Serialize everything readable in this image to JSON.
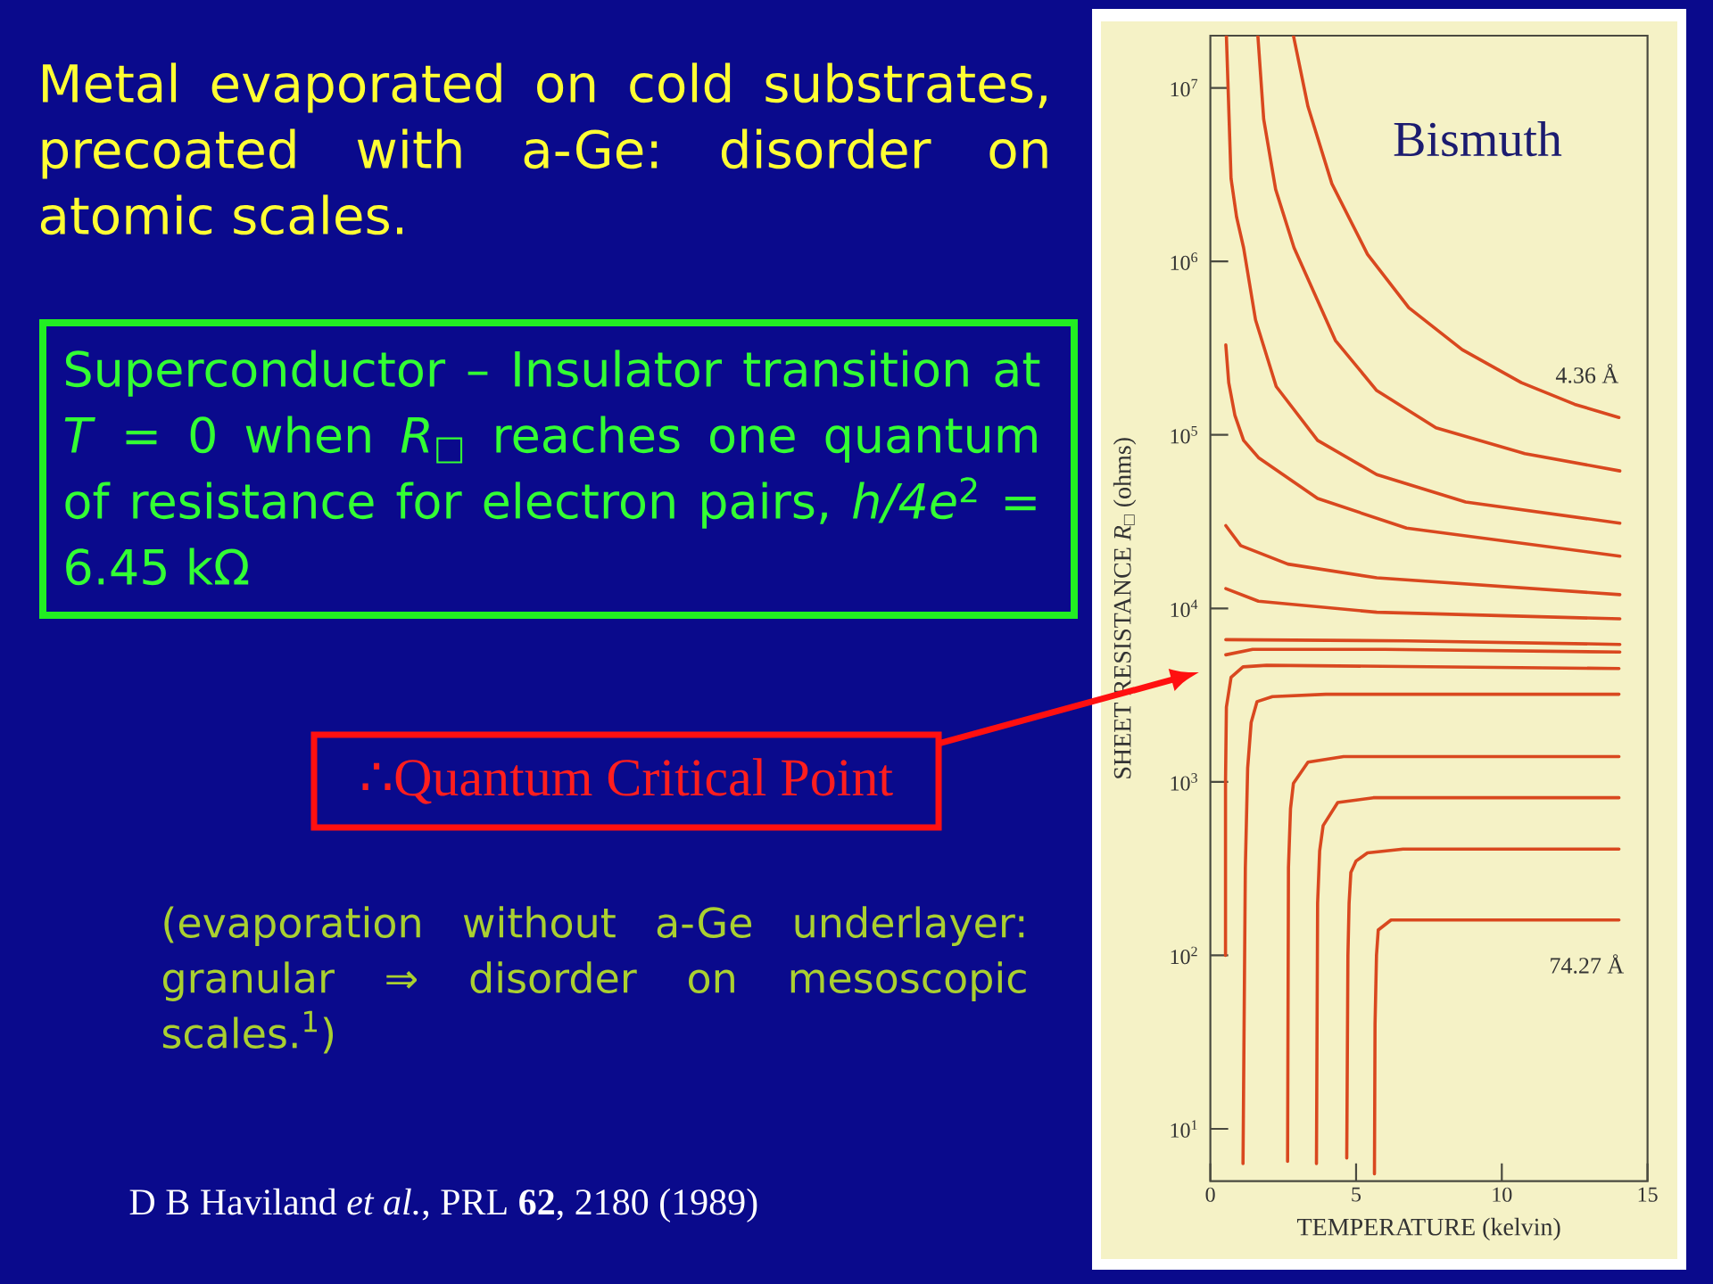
{
  "chart_data": {
    "type": "line",
    "title": "Metal evaporated on cold substrates, precoated with a-Ge: disorder on atomic scales.",
    "xlabel": "TEMPERATURE (kelvin)",
    "ylabel": "SHEET RESISTANCE *R*$_{□}$ (ohms)",
    "log": "y",
    "xlim": [
      0,
      15
    ],
    "xticks": [
      0,
      5,
      10,
      15
    ],
    "ylim": [
      5,
      20000000
    ],
    "yticks": [
      {
        "value": 10,
        "label": "10$^{1}$"
      },
      {
        "value": 100,
        "label": "10$^{2}$"
      },
      {
        "value": 1000,
        "label": "10$^{3}$"
      },
      {
        "value": 10000,
        "label": "10$^{4}$"
      },
      {
        "value": 100000,
        "label": "10$^{5}$"
      },
      {
        "value": 1000000,
        "label": "10$^{6}$"
      },
      {
        "value": 10000000,
        "label": "10$^{7}$"
      }
    ],
    "line_style": "solid",
    "series": [
      {
        "name": "4.36 Å",
        "color": "#d9481f",
        "x": [
          2.85,
          3.35,
          4.17,
          5.39,
          6.81,
          8.64,
          10.67,
          12.5,
          14.02
        ],
        "values": [
          20000000,
          7800000,
          2800000,
          1100000,
          540000,
          310000,
          200000,
          150000,
          126000
        ]
      },
      {
        "color": "#d9481f",
        "x": [
          1.63,
          1.83,
          2.24,
          2.87,
          4.29,
          5.71,
          7.74,
          10.79,
          14.05
        ],
        "values": [
          20000000,
          6600000,
          2600000,
          1200000,
          350000,
          180000,
          110000,
          78000,
          62000
        ]
      },
      {
        "color": "#d9481f",
        "x": [
          0.55,
          0.71,
          0.9,
          1.14,
          1.55,
          2.26,
          3.68,
          5.71,
          8.76,
          14.05
        ],
        "values": [
          20000000,
          3000000,
          1800000,
          1200000,
          460000,
          190000,
          93000,
          59000,
          41000,
          31000
        ]
      },
      {
        "color": "#d9481f",
        "x": [
          0.53,
          0.63,
          0.84,
          1.14,
          1.65,
          3.68,
          6.73,
          14.05
        ],
        "values": [
          330000,
          200000,
          130000,
          93000,
          74000,
          43000,
          29000,
          20000
        ]
      },
      {
        "color": "#d9481f",
        "x": [
          0.53,
          1.04,
          2.66,
          5.71,
          14.05
        ],
        "values": [
          30000,
          23000,
          18000,
          15000,
          12000
        ]
      },
      {
        "color": "#d9481f",
        "x": [
          0.53,
          1.65,
          5.71,
          14.05
        ],
        "values": [
          13000,
          11000,
          9500,
          8700
        ]
      },
      {
        "color": "#d9481f",
        "x": [
          0.53,
          6.73,
          14.05
        ],
        "values": [
          6600,
          6500,
          6200
        ]
      },
      {
        "color": "#d9481f",
        "x": [
          0.53,
          1.45,
          6.0,
          14.05
        ],
        "values": [
          5400,
          5800,
          5800,
          5600
        ]
      },
      {
        "color": "#d9481f",
        "x": [
          0.52,
          0.52,
          0.55,
          0.71,
          1.12,
          1.93,
          14.02
        ],
        "values": [
          100,
          1000,
          2700,
          4000,
          4600,
          4700,
          4500
        ]
      },
      {
        "color": "#d9481f",
        "x": [
          1.12,
          1.2,
          1.28,
          1.4,
          1.6,
          2.13,
          3.96,
          14.02
        ],
        "values": [
          6.3,
          320,
          1200,
          2200,
          2900,
          3100,
          3200,
          3200
        ]
      },
      {
        "color": "#d9481f",
        "x": [
          2.65,
          2.68,
          2.75,
          2.85,
          3.35,
          4.57,
          14.02
        ],
        "values": [
          6.5,
          320,
          700,
          980,
          1300,
          1400,
          1400
        ]
      },
      {
        "color": "#d9481f",
        "x": [
          3.64,
          3.68,
          3.75,
          3.87,
          4.37,
          5.59,
          14.02
        ],
        "values": [
          6.3,
          200,
          400,
          560,
          760,
          810,
          810
        ]
      },
      {
        "color": "#d9481f",
        "x": [
          4.68,
          4.72,
          4.76,
          4.82,
          5.0,
          5.39,
          6.61,
          14.02
        ],
        "values": [
          6.8,
          100,
          200,
          300,
          350,
          390,
          410,
          410
        ]
      },
      {
        "name": "74.27 Å",
        "color": "#d9481f",
        "x": [
          5.63,
          5.65,
          5.7,
          5.76,
          6.2,
          8.03,
          14.02
        ],
        "values": [
          5.5,
          40,
          100,
          140,
          160,
          160,
          160
        ]
      }
    ],
    "annotations": [
      "Superconductor – Insulator transition at *T* = 0 when *R*$_{□}$ reaches one quantum of resistance for electron pairs, *h/4e*$^{2}$ = 6.45 kΩ",
      "∴Quantum Critical Point",
      "(evaporation without a-Ge underlayer: granular ⇒ disorder on mesoscopic scales.$^{1}$)",
      "D B Haviland *et al.*, PRL **62**, 2180 (1989)",
      "Bismuth"
    ]
  }
}
